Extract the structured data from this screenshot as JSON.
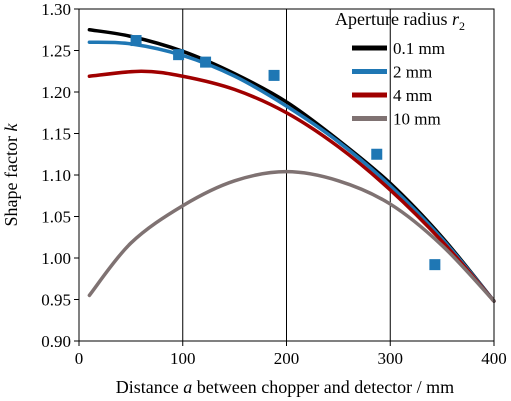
{
  "chart_data": {
    "type": "line",
    "xlabel_parts": [
      "Distance ",
      "a",
      " between chopper and detector / mm"
    ],
    "ylabel_parts": [
      "Shape factor ",
      "k"
    ],
    "legend_title_parts": [
      "Aperture radius ",
      "r",
      "2"
    ],
    "xlim": [
      0,
      400
    ],
    "ylim": [
      0.9,
      1.3
    ],
    "x_ticks": [
      0,
      100,
      200,
      300,
      400
    ],
    "x_tick_labels": [
      "0",
      "100",
      "200",
      "300",
      "400"
    ],
    "y_ticks": [
      0.9,
      0.95,
      1.0,
      1.05,
      1.1,
      1.15,
      1.2,
      1.25,
      1.3
    ],
    "y_tick_labels": [
      "0.90",
      "0.95",
      "1.00",
      "1.05",
      "1.10",
      "1.15",
      "1.20",
      "1.25",
      "1.30"
    ],
    "grid": "vertical",
    "legend_position": "top-right",
    "series": [
      {
        "name": "0.1 mm",
        "color": "#000000",
        "x": [
          10,
          50,
          100,
          150,
          200,
          250,
          300,
          350,
          400
        ],
        "y": [
          1.275,
          1.267,
          1.249,
          1.222,
          1.188,
          1.142,
          1.09,
          1.025,
          0.948
        ]
      },
      {
        "name": "2 mm",
        "color": "#1F77B4",
        "x": [
          10,
          50,
          100,
          150,
          200,
          250,
          300,
          350,
          400
        ],
        "y": [
          1.26,
          1.258,
          1.244,
          1.219,
          1.183,
          1.14,
          1.087,
          1.023,
          0.948
        ]
      },
      {
        "name": "4 mm",
        "color": "#A00000",
        "x": [
          10,
          60,
          100,
          150,
          200,
          250,
          300,
          350,
          400
        ],
        "y": [
          1.219,
          1.225,
          1.219,
          1.203,
          1.175,
          1.134,
          1.082,
          1.02,
          0.948
        ]
      },
      {
        "name": "10 mm",
        "color": "#7F7272",
        "x": [
          10,
          50,
          100,
          150,
          200,
          250,
          300,
          350,
          400
        ],
        "y": [
          0.955,
          1.018,
          1.063,
          1.093,
          1.104,
          1.093,
          1.065,
          1.015,
          0.948
        ]
      }
    ],
    "markers": {
      "series": "2 mm",
      "color": "#1F77B4",
      "x": [
        55,
        96,
        122,
        188,
        287,
        343
      ],
      "y": [
        1.262,
        1.245,
        1.236,
        1.22,
        1.125,
        0.992
      ]
    }
  }
}
